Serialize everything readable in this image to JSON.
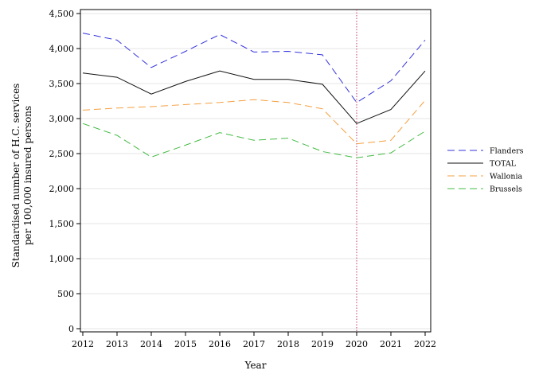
{
  "chart_data": {
    "type": "line",
    "title": "",
    "xlabel": "Year",
    "ylabel": [
      "Standardised number of H.C. services",
      "per 100,000 insured persons"
    ],
    "x": [
      "2012",
      "2013",
      "2014",
      "2015",
      "2016",
      "2017",
      "2018",
      "2019",
      "2020",
      "2021",
      "2022"
    ],
    "ylim": [
      0,
      4500
    ],
    "yticks": [
      0,
      500,
      1000,
      1500,
      2000,
      2500,
      3000,
      3500,
      4000,
      4500
    ],
    "ytick_labels": [
      "0",
      "500",
      "1,000",
      "1,500",
      "2,000",
      "2,500",
      "3,000",
      "3,500",
      "4,000",
      "4,500"
    ],
    "grid": true,
    "legend_position": "right",
    "reference_line": {
      "x": "2020",
      "style": "dotted",
      "color": "#c0386b"
    },
    "series": [
      {
        "name": "Flanders",
        "color": "#3333dd",
        "style": "dashed",
        "values": [
          4220,
          4120,
          3730,
          3960,
          4200,
          3950,
          3960,
          3910,
          3230,
          3540,
          4120
        ]
      },
      {
        "name": "TOTAL",
        "color": "#111111",
        "style": "solid",
        "values": [
          3650,
          3590,
          3350,
          3530,
          3680,
          3560,
          3560,
          3490,
          2930,
          3130,
          3680
        ]
      },
      {
        "name": "Wallonia",
        "color": "#f4a040",
        "style": "dashed",
        "values": [
          3120,
          3150,
          3170,
          3200,
          3230,
          3270,
          3230,
          3140,
          2640,
          2690,
          3260
        ]
      },
      {
        "name": "Brussels",
        "color": "#44bb44",
        "style": "dashed",
        "values": [
          2930,
          2760,
          2450,
          2620,
          2800,
          2690,
          2720,
          2530,
          2440,
          2510,
          2820
        ]
      }
    ]
  }
}
